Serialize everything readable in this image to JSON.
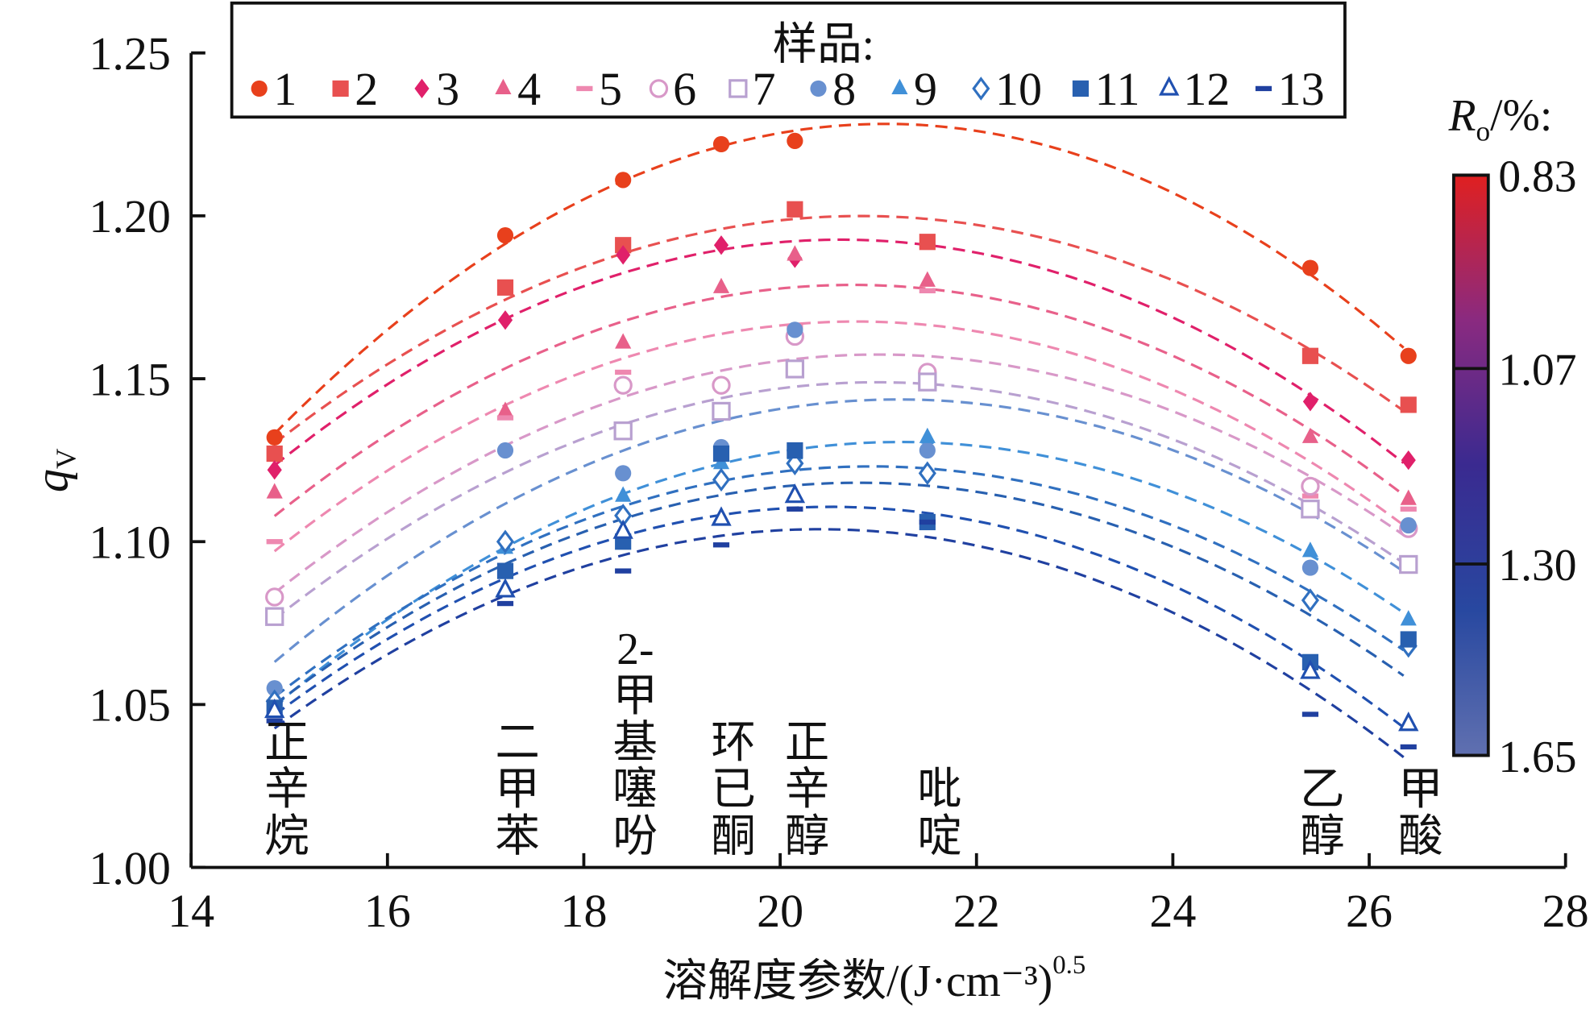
{
  "chart_data": {
    "type": "scatter",
    "title": "",
    "xlabel": "溶解度参数/(J·cm⁻³)",
    "xlabel_exp": "0.5",
    "ylabel": "q",
    "ylabel_sub": "V",
    "xlim": [
      14,
      28
    ],
    "ylim": [
      1.0,
      1.25
    ],
    "xticks": [
      "14",
      "16",
      "18",
      "20",
      "22",
      "24",
      "26",
      "28"
    ],
    "yticks": [
      "1.00",
      "1.05",
      "1.10",
      "1.15",
      "1.20",
      "1.25"
    ],
    "grid": false,
    "legend": {
      "title": "样品:",
      "placement": "top"
    },
    "solvents": [
      {
        "name": "正辛烷",
        "lines": [
          "正",
          "辛",
          "烷"
        ],
        "x": 14.85
      },
      {
        "name": "二甲苯",
        "lines": [
          "二",
          "甲",
          "苯"
        ],
        "x": 17.2
      },
      {
        "name": "2-甲基噻吩",
        "lines": [
          "2-",
          "甲",
          "基",
          "噻",
          "吩"
        ],
        "x": 18.4
      },
      {
        "name": "环已酮",
        "lines": [
          "环",
          "已",
          "酮"
        ],
        "x": 19.4
      },
      {
        "name": "正辛醇",
        "lines": [
          "正",
          "辛",
          "醇"
        ],
        "x": 20.15
      },
      {
        "name": "吡啶",
        "lines": [
          "吡",
          "啶"
        ],
        "x": 21.5
      },
      {
        "name": "乙醇",
        "lines": [
          "乙",
          "醇"
        ],
        "x": 25.4
      },
      {
        "name": "甲酸",
        "lines": [
          "甲",
          "酸"
        ],
        "x": 26.4
      }
    ],
    "series": [
      {
        "name": "1",
        "marker": "circle",
        "fill": true,
        "color": "#e8401c",
        "values": [
          1.132,
          1.194,
          1.211,
          1.222,
          1.223,
          null,
          1.184,
          1.157
        ]
      },
      {
        "name": "2",
        "marker": "square",
        "fill": true,
        "color": "#e85050",
        "values": [
          1.127,
          1.178,
          1.191,
          null,
          1.202,
          1.192,
          1.157,
          1.142
        ]
      },
      {
        "name": "3",
        "marker": "diamond",
        "fill": true,
        "color": "#e0206a",
        "values": [
          1.122,
          1.168,
          1.188,
          1.191,
          1.187,
          null,
          1.143,
          1.125
        ]
      },
      {
        "name": "4",
        "marker": "triangle",
        "fill": true,
        "color": "#e8608a",
        "values": [
          1.115,
          1.14,
          1.161,
          1.178,
          1.188,
          1.18,
          1.132,
          1.113
        ]
      },
      {
        "name": "5",
        "marker": "dash",
        "fill": true,
        "color": "#ee88b0",
        "values": [
          1.1,
          1.138,
          1.152,
          null,
          1.166,
          1.177,
          1.114,
          1.11
        ]
      },
      {
        "name": "6",
        "marker": "circle",
        "fill": false,
        "color": "#d898c8",
        "values": [
          1.083,
          null,
          1.148,
          1.148,
          1.163,
          1.152,
          1.117,
          1.104
        ]
      },
      {
        "name": "7",
        "marker": "square",
        "fill": false,
        "color": "#b8a0d0",
        "values": [
          1.077,
          null,
          1.134,
          1.14,
          1.153,
          1.149,
          1.11,
          1.093
        ]
      },
      {
        "name": "8",
        "marker": "circle",
        "fill": true,
        "color": "#6890d0",
        "values": [
          1.055,
          1.128,
          1.121,
          1.129,
          1.165,
          1.128,
          1.092,
          1.105
        ]
      },
      {
        "name": "9",
        "marker": "triangle",
        "fill": true,
        "color": "#4090d8",
        "values": [
          1.05,
          1.098,
          1.114,
          1.124,
          1.127,
          1.132,
          1.097,
          1.076
        ]
      },
      {
        "name": "10",
        "marker": "diamond",
        "fill": false,
        "color": "#3070c0",
        "values": [
          1.051,
          1.1,
          1.108,
          1.119,
          1.124,
          1.121,
          1.082,
          1.068
        ]
      },
      {
        "name": "11",
        "marker": "square",
        "fill": true,
        "color": "#2860b0",
        "values": [
          1.049,
          1.091,
          1.1,
          1.127,
          1.128,
          1.106,
          1.063,
          1.07
        ]
      },
      {
        "name": "12",
        "marker": "triangle",
        "fill": false,
        "color": "#2050b0",
        "values": [
          1.048,
          1.085,
          1.103,
          1.107,
          1.114,
          null,
          1.06,
          1.044
        ]
      },
      {
        "name": "13",
        "marker": "dash",
        "fill": true,
        "color": "#2040a0",
        "values": [
          1.045,
          1.081,
          1.091,
          1.099,
          1.11,
          1.106,
          1.047,
          1.037
        ]
      }
    ],
    "colorbar": {
      "title": "R",
      "title_sub": "o",
      "title_suffix": "/%:",
      "ticks": [
        "0.83",
        "1.07",
        "1.30",
        "1.65"
      ],
      "colors": [
        "#e02020",
        "#8a2a80",
        "#3a2a90",
        "#2848a0",
        "#6070b0"
      ]
    }
  }
}
